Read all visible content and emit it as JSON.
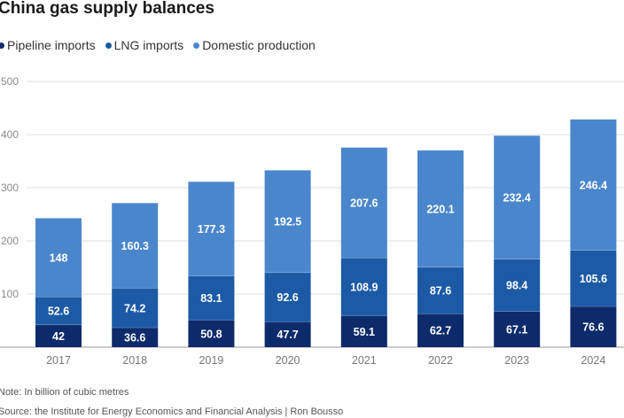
{
  "chart_data": {
    "type": "bar",
    "stacked": true,
    "title": "China gas supply balances",
    "categories": [
      "2017",
      "2018",
      "2019",
      "2020",
      "2021",
      "2022",
      "2023",
      "2024"
    ],
    "series": [
      {
        "name": "Pipeline imports",
        "color": "#0d2b6b",
        "values": [
          42,
          36.6,
          50.8,
          47.7,
          59.1,
          62.7,
          67.1,
          76.6
        ]
      },
      {
        "name": "LNG imports",
        "color": "#1c5aa6",
        "values": [
          52.6,
          74.2,
          83.1,
          92.6,
          108.9,
          87.6,
          98.4,
          105.6
        ]
      },
      {
        "name": "Domestic production",
        "color": "#4a86cc",
        "values": [
          148,
          160.3,
          177.3,
          192.5,
          207.6,
          220.1,
          232.4,
          246.4
        ]
      }
    ],
    "value_labels": [
      [
        "42",
        "36.6",
        "50.8",
        "47.7",
        "59.1",
        "62.7",
        "67.1",
        "76.6"
      ],
      [
        "52.6",
        "74.2",
        "83.1",
        "92.6",
        "108.9",
        "87.6",
        "98.4",
        "105.6"
      ],
      [
        "148",
        "160.3",
        "177.3",
        "192.5",
        "207.6",
        "220.1",
        "232.4",
        "246.4"
      ]
    ],
    "y_ticks": [
      100,
      200,
      300,
      400,
      500
    ],
    "y_tick_labels": [
      "100",
      "200",
      "300",
      "400",
      "500"
    ],
    "ylim": [
      0,
      500
    ],
    "grid": true,
    "xlabel": "",
    "ylabel": "",
    "legend_position": "top-left"
  },
  "note": "Note: In billion of cubic metres",
  "source": "Source: the Institute for Energy Economics and Financial Analysis | Ron Bousso"
}
